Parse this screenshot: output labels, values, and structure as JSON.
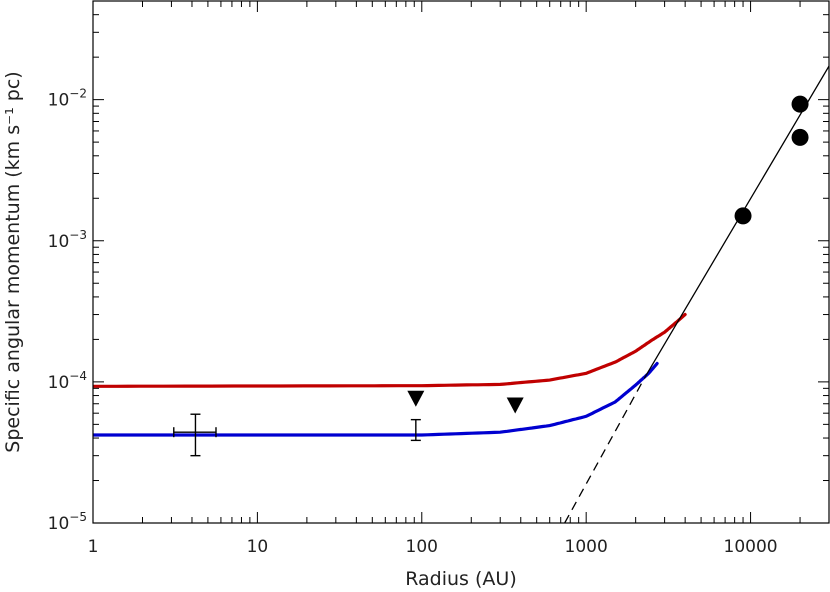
{
  "chart_data": {
    "type": "line",
    "xlabel": "Radius (AU)",
    "ylabel": "Specific angular momentum (km s⁻¹ pc)",
    "x_scale": "log",
    "y_scale": "log",
    "xlim": [
      1,
      30000
    ],
    "ylim": [
      1e-05,
      0.05
    ],
    "x_ticks": [
      {
        "value": 1,
        "label": "1"
      },
      {
        "value": 10,
        "label": "10"
      },
      {
        "value": 100,
        "label": "100"
      },
      {
        "value": 1000,
        "label": "1000"
      },
      {
        "value": 10000,
        "label": "10000"
      }
    ],
    "y_ticks": [
      {
        "value": 1e-05,
        "base": "10",
        "exp": "−5"
      },
      {
        "value": 0.0001,
        "base": "10",
        "exp": "−4"
      },
      {
        "value": 0.001,
        "base": "10",
        "exp": "−3"
      },
      {
        "value": 0.01,
        "base": "10",
        "exp": "−2"
      }
    ],
    "grid": false,
    "legend": "none",
    "series": [
      {
        "style": "curve",
        "color": "#c00000",
        "points": [
          [
            1,
            9.3e-05
          ],
          [
            100,
            9.4e-05
          ],
          [
            300,
            9.6e-05
          ],
          [
            600,
            0.000103
          ],
          [
            1000,
            0.000115
          ],
          [
            1500,
            0.000138
          ],
          [
            2000,
            0.000165
          ],
          [
            2500,
            0.000197
          ],
          [
            3000,
            0.000225
          ],
          [
            3500,
            0.000262
          ],
          [
            4000,
            0.0003
          ]
        ]
      },
      {
        "style": "curve",
        "color": "#0000d0",
        "points": [
          [
            1,
            4.2e-05
          ],
          [
            100,
            4.2e-05
          ],
          [
            300,
            4.4e-05
          ],
          [
            600,
            4.9e-05
          ],
          [
            1000,
            5.7e-05
          ],
          [
            1500,
            7.2e-05
          ],
          [
            2000,
            9.5e-05
          ],
          [
            2400,
            0.000115
          ],
          [
            2700,
            0.000135
          ]
        ]
      },
      {
        "style": "solid-line",
        "color": "#000000",
        "points": [
          [
            2300,
            0.00011
          ],
          [
            30000,
            0.0173
          ]
        ]
      },
      {
        "style": "dashed-line",
        "color": "#000000",
        "points": [
          [
            740,
            1e-05
          ],
          [
            2300,
            0.00011
          ]
        ]
      },
      {
        "style": "filled-circle",
        "color": "#000000",
        "points": [
          [
            9000,
            0.0015
          ],
          [
            20000,
            0.0093
          ],
          [
            20000,
            0.0054
          ]
        ]
      },
      {
        "style": "down-triangle",
        "color": "#000000",
        "points": [
          [
            92,
            7.6e-05
          ],
          [
            370,
            6.8e-05
          ]
        ]
      },
      {
        "style": "errorbar",
        "color": "#000000",
        "points": [
          {
            "x": 4.2,
            "y": 4.4e-05,
            "ylo": 3e-05,
            "yhi": 5.9e-05,
            "xlo": 3.1,
            "xhi": 5.6
          },
          {
            "x": 92,
            "y": 4.5e-05,
            "ylo": 3.85e-05,
            "yhi": 5.4e-05
          }
        ]
      }
    ]
  }
}
